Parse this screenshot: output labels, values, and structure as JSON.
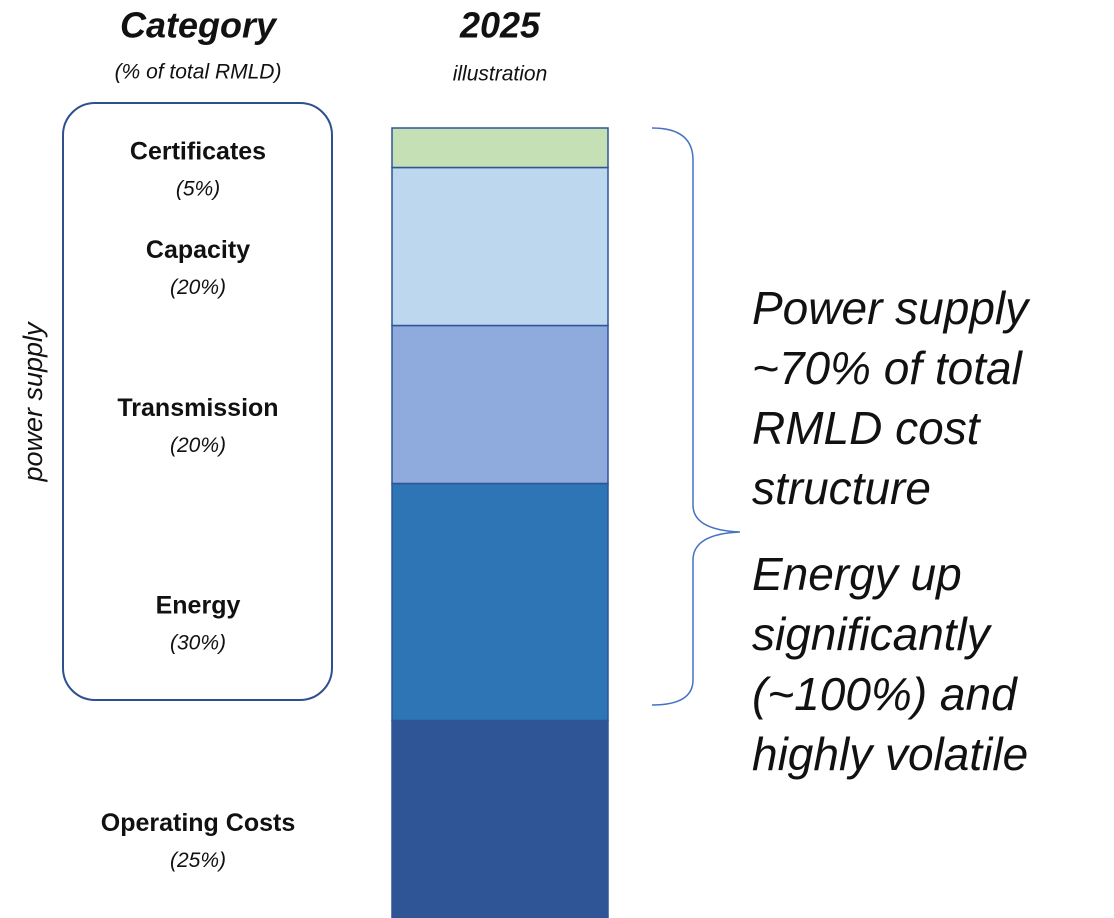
{
  "chart_data": {
    "type": "bar",
    "stacked": true,
    "legend_title": "Category",
    "legend_subtitle": "(% of total RMLD)",
    "categories": [
      "2025"
    ],
    "subtitle": "illustration",
    "group_label": "power supply",
    "ylim": [
      0,
      100
    ],
    "series": [
      {
        "name": "Operating Costs",
        "color": "#2f5597",
        "values": [
          25
        ],
        "value_labels": [
          "(25%)"
        ]
      },
      {
        "name": "Energy",
        "color": "#2e75b6",
        "values": [
          30
        ],
        "value_labels": [
          "(30%)"
        ]
      },
      {
        "name": "Transmission",
        "color": "#8faadc",
        "values": [
          20
        ],
        "value_labels": [
          "(20%)"
        ]
      },
      {
        "name": "Capacity",
        "color": "#bdd7ee",
        "values": [
          20
        ],
        "value_labels": [
          "(20%)"
        ]
      },
      {
        "name": "Certificates",
        "color": "#c5e0b4",
        "values": [
          5
        ],
        "value_labels": [
          "(5%)"
        ]
      }
    ],
    "annotations": [
      [
        "Power supply",
        "~70% of total",
        "RMLD cost",
        "structure"
      ],
      [
        "Energy up",
        "significantly",
        "(~100%) and",
        "highly volatile"
      ]
    ]
  }
}
